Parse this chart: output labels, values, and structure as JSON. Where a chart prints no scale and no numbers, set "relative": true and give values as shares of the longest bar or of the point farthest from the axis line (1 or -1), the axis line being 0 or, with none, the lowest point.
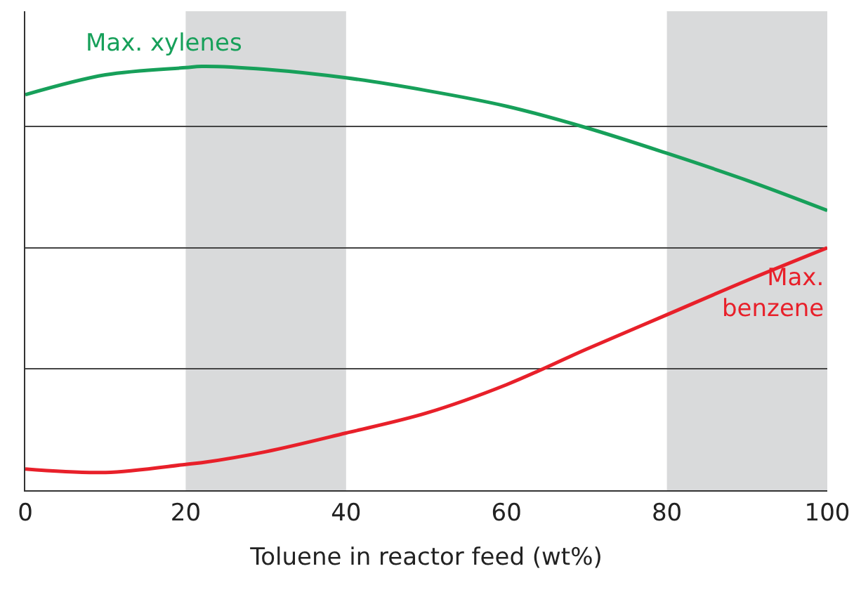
{
  "chart_data": {
    "type": "line",
    "relative": true,
    "xlabel": "Toluene in reactor feed (wt%)",
    "xlim": [
      0,
      100
    ],
    "xticks": [
      0,
      20,
      40,
      60,
      80,
      100
    ],
    "grid": "y",
    "legend": false,
    "tick_labels": "x",
    "bands": [
      {
        "axis": "x",
        "from": 20,
        "to": 40,
        "color": "#d9dadb"
      },
      {
        "axis": "x",
        "from": 80,
        "to": 100,
        "color": "#d9dadb"
      }
    ],
    "x": [
      0,
      10,
      20,
      22,
      30,
      40,
      50,
      60,
      70,
      80,
      90,
      100
    ],
    "series": [
      {
        "name": "Max. xylenes",
        "color": "#17a05a",
        "values": [
          0.933,
          0.98,
          0.997,
          1.0,
          0.993,
          0.973,
          0.943,
          0.906,
          0.855,
          0.795,
          0.731,
          0.66
        ]
      },
      {
        "name": "Max. benzene",
        "color": "#e8202a",
        "values": [
          0.05,
          0.042,
          0.061,
          0.065,
          0.091,
          0.135,
          0.182,
          0.249,
          0.333,
          0.414,
          0.495,
          0.572
        ]
      }
    ]
  }
}
